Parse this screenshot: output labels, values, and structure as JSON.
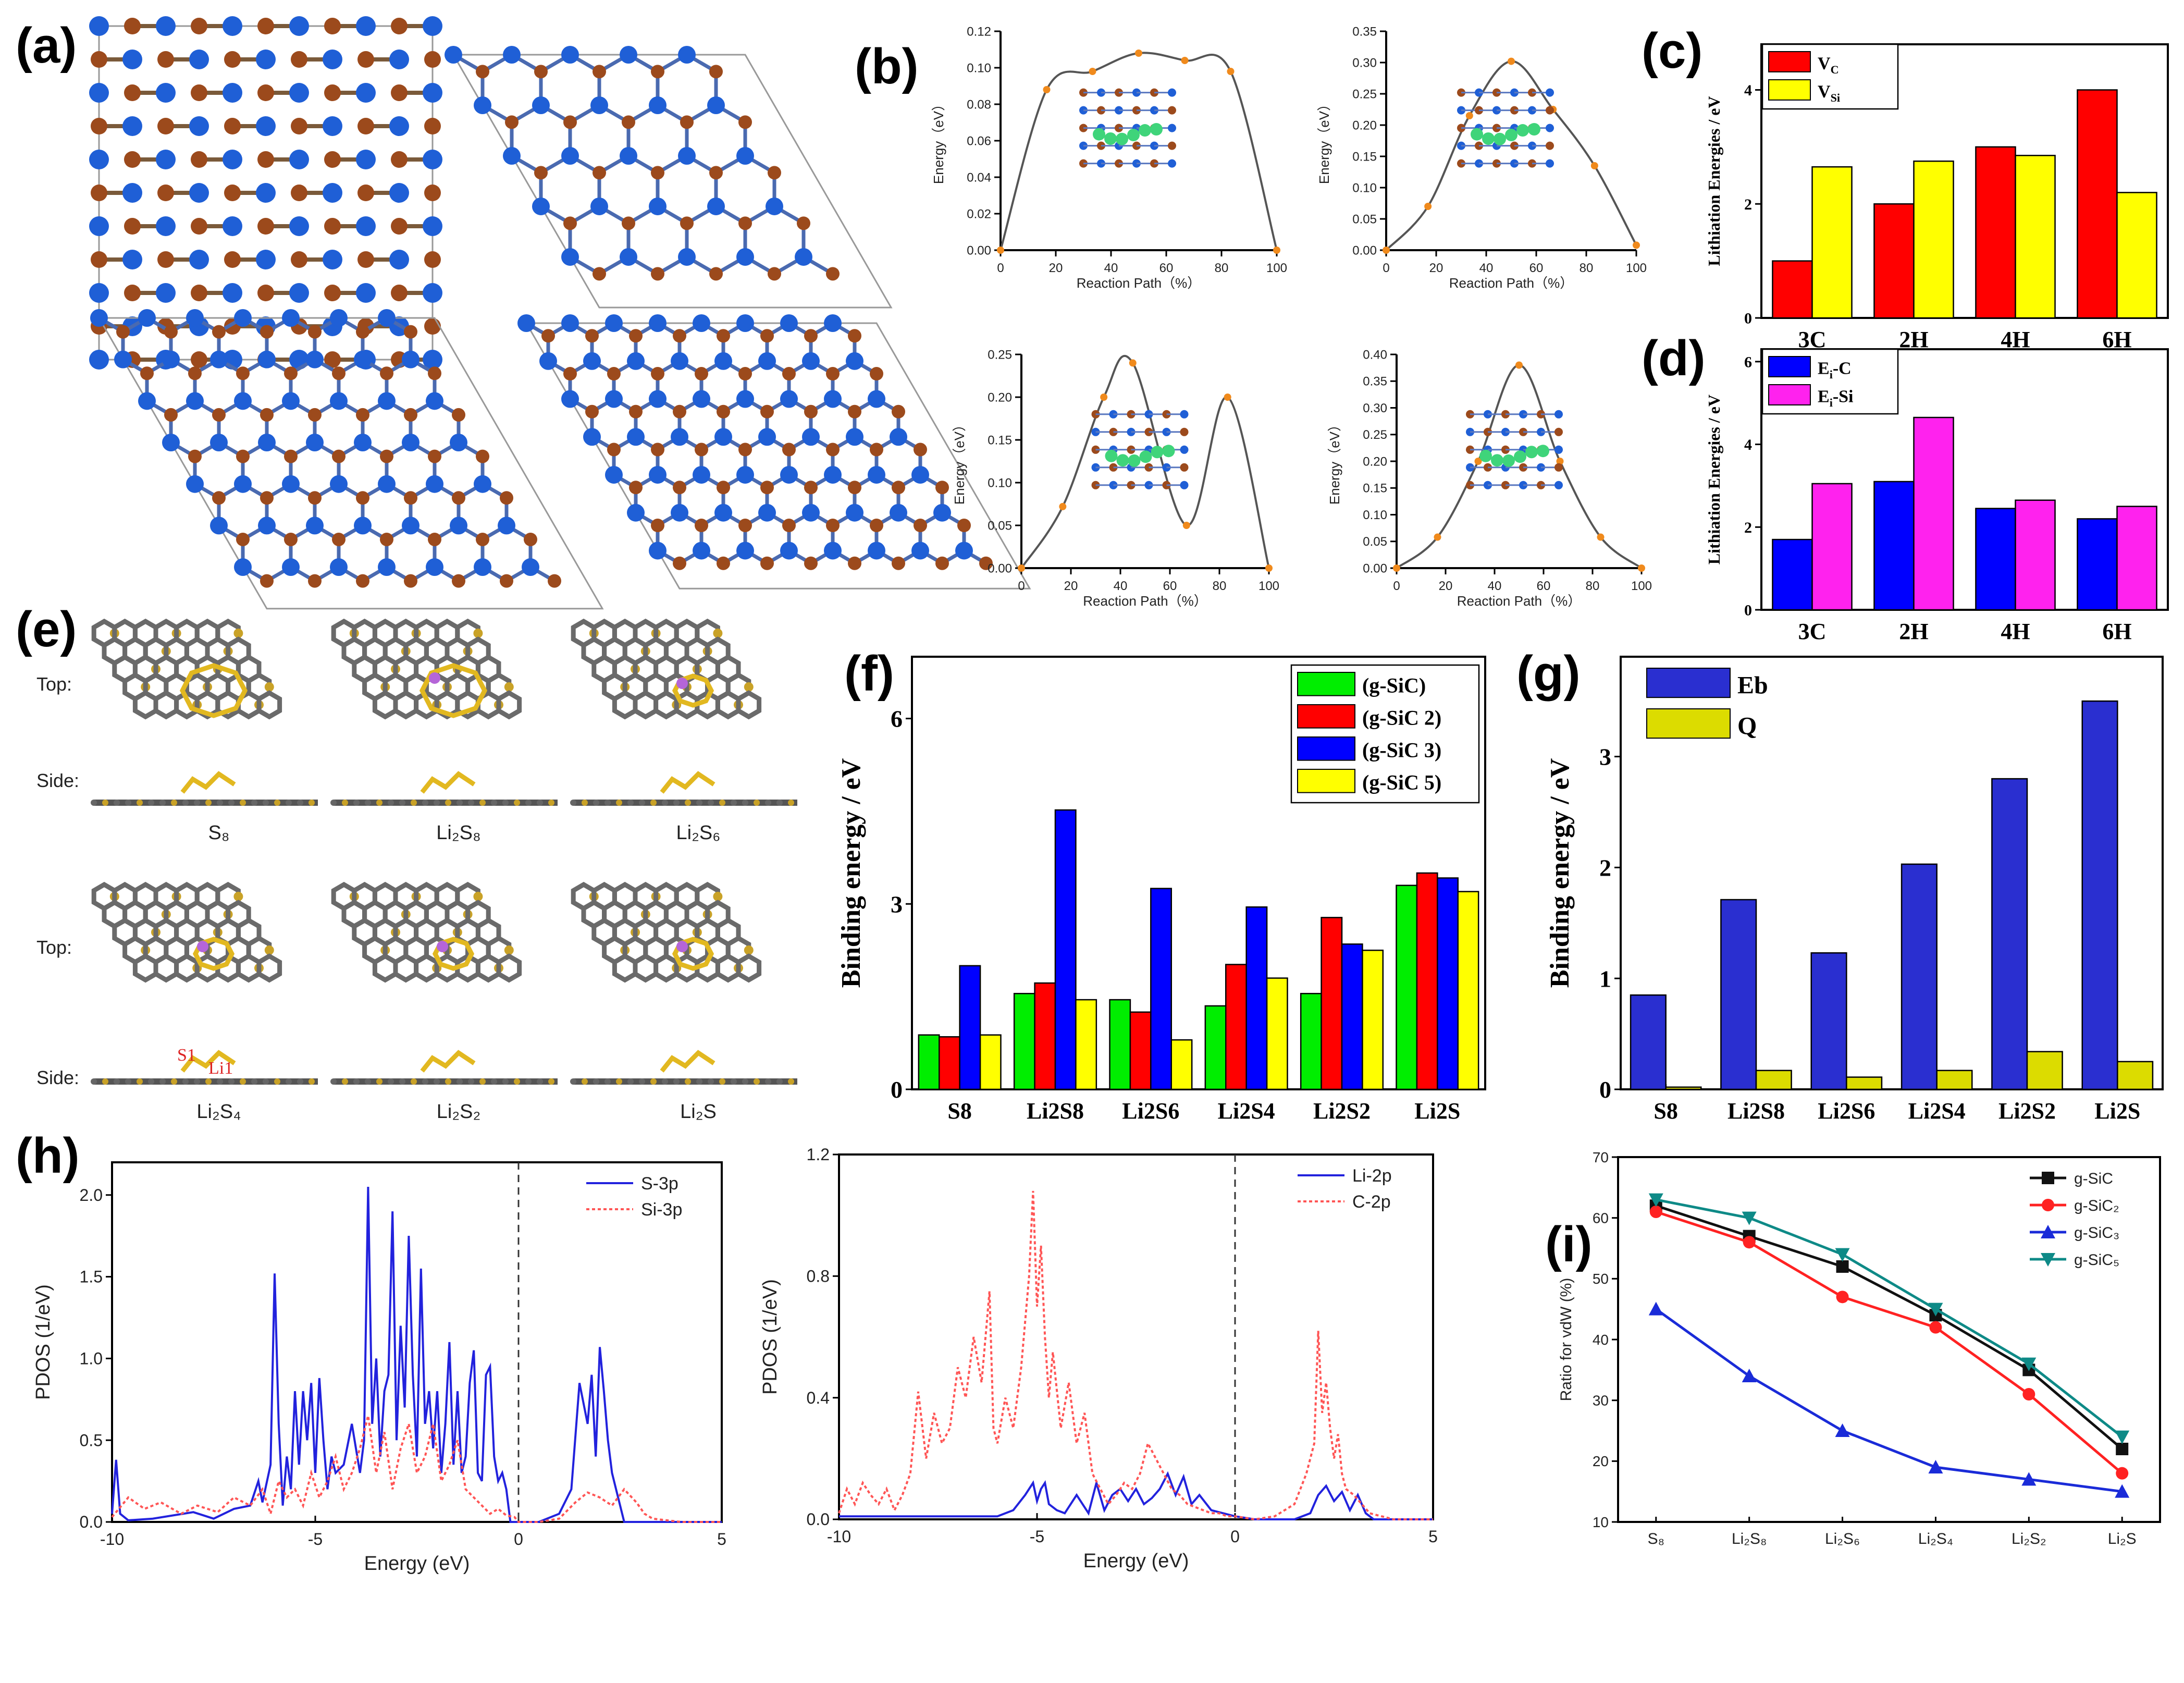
{
  "panel_labels": {
    "a": "(a)",
    "b": "(b)",
    "c": "(c)",
    "d": "(d)",
    "e": "(e)",
    "f": "(f)",
    "g": "(g)",
    "h": "(h)",
    "i": "(i)"
  },
  "colors": {
    "si": "#1f5fd6",
    "c": "#9c4a1c",
    "s": "#e2b820",
    "li": "#b565d8",
    "grey": "#6a6a6a",
    "green_path": "#3fd47a"
  },
  "structure_e": {
    "row_labels": {
      "top": "Top:",
      "side": "Side:"
    },
    "species": [
      "S8",
      "Li2S8",
      "Li2S6",
      "Li2S4",
      "Li2S2",
      "Li2S"
    ],
    "species_display": [
      "S₈",
      "Li₂S₈",
      "Li₂S₆",
      "Li₂S₄",
      "Li₂S₂",
      "Li₂S"
    ],
    "atom_labels": {
      "s1": "S1",
      "li1": "Li1"
    }
  },
  "chart_data": [
    {
      "id": "b1",
      "type": "line",
      "xlabel": "Reaction Path（%）",
      "ylabel": "Energy（eV）",
      "xlim": [
        0,
        100
      ],
      "ylim": [
        0,
        0.12
      ],
      "xticks": [
        "0",
        "20",
        "40",
        "60",
        "80",
        "100"
      ],
      "yticks": [
        "0.00",
        "0.02",
        "0.04",
        "0.06",
        "0.08",
        "0.10",
        "0.12"
      ],
      "x": [
        0,
        16.7,
        33.3,
        50,
        66.7,
        83.3,
        100
      ],
      "y": [
        0.0,
        0.088,
        0.098,
        0.108,
        0.104,
        0.098,
        0.0
      ]
    },
    {
      "id": "b2",
      "type": "line",
      "xlabel": "Reaction Path（%）",
      "ylabel": "Energy（eV）",
      "xlim": [
        0,
        100
      ],
      "ylim": [
        0,
        0.35
      ],
      "xticks": [
        "0",
        "20",
        "40",
        "60",
        "80",
        "100"
      ],
      "yticks": [
        "0.00",
        "0.05",
        "0.10",
        "0.15",
        "0.20",
        "0.25",
        "0.30",
        "0.35"
      ],
      "x": [
        0,
        16.7,
        33.3,
        50,
        66.7,
        83.3,
        100
      ],
      "y": [
        0.0,
        0.07,
        0.215,
        0.302,
        0.225,
        0.135,
        0.008
      ]
    },
    {
      "id": "b3",
      "type": "line",
      "xlabel": "Reaction Path（%）",
      "ylabel": "Energy（eV）",
      "xlim": [
        0,
        100
      ],
      "ylim": [
        0,
        0.25
      ],
      "xticks": [
        "0",
        "20",
        "40",
        "60",
        "80",
        "100"
      ],
      "yticks": [
        "0.00",
        "0.05",
        "0.10",
        "0.15",
        "0.20",
        "0.25"
      ],
      "x": [
        0,
        16.7,
        33.3,
        45,
        66.7,
        83.3,
        100
      ],
      "y": [
        0.0,
        0.072,
        0.2,
        0.24,
        0.05,
        0.2,
        0.0
      ]
    },
    {
      "id": "b4",
      "type": "line",
      "xlabel": "Reaction Path（%）",
      "ylabel": "Energy（eV）",
      "xlim": [
        0,
        100
      ],
      "ylim": [
        0,
        0.4
      ],
      "xticks": [
        "0",
        "20",
        "40",
        "60",
        "80",
        "100"
      ],
      "yticks": [
        "0.00",
        "0.05",
        "0.10",
        "0.15",
        "0.20",
        "0.25",
        "0.30",
        "0.35",
        "0.40"
      ],
      "x": [
        0,
        16.7,
        33.3,
        50,
        66.7,
        83.3,
        100
      ],
      "y": [
        0.0,
        0.058,
        0.2,
        0.38,
        0.2,
        0.058,
        0.0
      ]
    },
    {
      "id": "c",
      "type": "bar",
      "ylabel": "Lithiation Energies / eV",
      "categories": [
        "3C",
        "2H",
        "4H",
        "6H"
      ],
      "ylim": [
        0,
        4.8
      ],
      "yticks": [
        "0",
        "2",
        "4"
      ],
      "series": [
        {
          "name": "V",
          "sub": "C",
          "color": "#ff0000",
          "values": [
            1.0,
            2.0,
            3.0,
            4.0
          ]
        },
        {
          "name": "V",
          "sub": "Si",
          "color": "#ffff00",
          "values": [
            2.65,
            2.75,
            2.85,
            2.2
          ]
        }
      ]
    },
    {
      "id": "d",
      "type": "bar",
      "ylabel": "Lithiation Energies / eV",
      "categories": [
        "3C",
        "2H",
        "4H",
        "6H"
      ],
      "ylim": [
        0,
        6.3
      ],
      "yticks": [
        "0",
        "2",
        "4",
        "6"
      ],
      "series": [
        {
          "name": "E",
          "sub": "i",
          "suffix": "-C",
          "color": "#0000ff",
          "values": [
            1.7,
            3.1,
            2.45,
            2.2
          ]
        },
        {
          "name": "E",
          "sub": "i",
          "suffix": "-Si",
          "color": "#ff22ee",
          "values": [
            3.05,
            4.65,
            2.65,
            2.5
          ]
        }
      ]
    },
    {
      "id": "f",
      "type": "bar",
      "ylabel": "Binding energy / eV",
      "categories": [
        "S8",
        "Li2S8",
        "Li2S6",
        "Li2S4",
        "Li2S2",
        "Li2S"
      ],
      "ylim": [
        0,
        7
      ],
      "yticks": [
        "0",
        "3",
        "6"
      ],
      "series": [
        {
          "name": "(g-SiC)",
          "color": "#00ee00",
          "values": [
            0.88,
            1.55,
            1.45,
            1.35,
            1.55,
            3.3
          ]
        },
        {
          "name": "(g-SiC 2)",
          "color": "#ff0000",
          "values": [
            0.85,
            1.72,
            1.25,
            2.02,
            2.78,
            3.5
          ]
        },
        {
          "name": "(g-SiC 3)",
          "color": "#0000ff",
          "values": [
            2.0,
            4.52,
            3.25,
            2.95,
            2.35,
            3.42
          ]
        },
        {
          "name": "(g-SiC 5)",
          "color": "#ffff00",
          "values": [
            0.88,
            1.45,
            0.8,
            1.8,
            2.25,
            3.2
          ]
        }
      ]
    },
    {
      "id": "g",
      "type": "bar",
      "ylabel": "Binding energy / eV",
      "categories": [
        "S8",
        "Li2S8",
        "Li2S6",
        "Li2S4",
        "Li2S2",
        "Li2S"
      ],
      "ylim": [
        0,
        3.9
      ],
      "yticks": [
        "0",
        "1",
        "2",
        "3"
      ],
      "series": [
        {
          "name": "Eb",
          "color": "#2a2fd0",
          "values": [
            0.85,
            1.71,
            1.23,
            2.03,
            2.8,
            3.5
          ]
        },
        {
          "name": "Q",
          "color": "#dcdc00",
          "values": [
            0.02,
            0.17,
            0.11,
            0.17,
            0.34,
            0.25
          ]
        }
      ]
    },
    {
      "id": "h1",
      "type": "line",
      "xlabel": "Energy (eV)",
      "ylabel": "PDOS (1/eV)",
      "xlim": [
        -10,
        5
      ],
      "ylim": [
        0,
        2.2
      ],
      "xticks": [
        "-10",
        "-5",
        "0",
        "5"
      ],
      "yticks": [
        "0.0",
        "0.5",
        "1.0",
        "1.5",
        "2.0"
      ],
      "series": [
        {
          "name": "S-3p",
          "color": "#2222dd",
          "x": [
            -10,
            -9.9,
            -9.8,
            -9.6,
            -9,
            -8,
            -7.5,
            -7,
            -6.6,
            -6.4,
            -6.3,
            -6.1,
            -6.0,
            -5.9,
            -5.8,
            -5.7,
            -5.6,
            -5.5,
            -5.4,
            -5.3,
            -5.2,
            -5.1,
            -5.0,
            -4.9,
            -4.8,
            -4.7,
            -4.6,
            -4.5,
            -4.3,
            -4.1,
            -3.9,
            -3.8,
            -3.7,
            -3.6,
            -3.5,
            -3.4,
            -3.3,
            -3.2,
            -3.1,
            -3.0,
            -2.9,
            -2.8,
            -2.7,
            -2.6,
            -2.5,
            -2.4,
            -2.3,
            -2.2,
            -2.1,
            -2.0,
            -1.9,
            -1.8,
            -1.7,
            -1.6,
            -1.5,
            -1.4,
            -1.3,
            -1.2,
            -1.1,
            -1.0,
            -0.9,
            -0.8,
            -0.7,
            -0.6,
            -0.5,
            -0.4,
            -0.3,
            -0.2,
            -0.1,
            0,
            0.5,
            1.0,
            1.3,
            1.5,
            1.7,
            1.8,
            1.9,
            2.0,
            2.1,
            2.2,
            2.3,
            2.4,
            2.5,
            2.6,
            2.7,
            2.8,
            2.9,
            3.0,
            3.1,
            3.3,
            4,
            5
          ],
          "y": [
            0.05,
            0.38,
            0.05,
            0.01,
            0.02,
            0.06,
            0.02,
            0.08,
            0.1,
            0.25,
            0.12,
            0.35,
            1.52,
            0.6,
            0.1,
            0.4,
            0.2,
            0.8,
            0.35,
            0.8,
            0.5,
            0.85,
            0.3,
            0.88,
            0.5,
            0.2,
            0.4,
            0.3,
            0.35,
            0.6,
            0.3,
            0.5,
            2.05,
            0.6,
            1.0,
            0.4,
            0.8,
            0.9,
            1.9,
            0.5,
            1.2,
            0.7,
            1.75,
            0.9,
            0.4,
            1.55,
            0.6,
            0.8,
            0.45,
            0.8,
            0.3,
            0.6,
            1.1,
            0.35,
            0.8,
            0.3,
            0.4,
            0.85,
            1.05,
            0.3,
            0.25,
            0.9,
            0.95,
            0.4,
            0.25,
            0.3,
            0.2,
            0.0,
            0.0,
            0.0,
            0.0,
            0.05,
            0.2,
            0.85,
            0.6,
            0.9,
            0.4,
            1.07,
            0.8,
            0.5,
            0.3,
            0.2,
            0.1,
            0.0,
            0.0,
            0.0,
            0.0,
            0.0,
            0.0,
            0.0,
            0.0,
            0.0
          ]
        },
        {
          "name": "Si-3p",
          "color": "#ff5555",
          "dashed": true,
          "x": [
            -10,
            -9.6,
            -9.2,
            -8.8,
            -8.3,
            -7.9,
            -7.4,
            -7.0,
            -6.6,
            -6.3,
            -6.1,
            -5.9,
            -5.7,
            -5.5,
            -5.3,
            -5.1,
            -4.9,
            -4.7,
            -4.5,
            -4.3,
            -4.1,
            -3.9,
            -3.7,
            -3.5,
            -3.3,
            -3.1,
            -2.9,
            -2.7,
            -2.5,
            -2.3,
            -2.1,
            -1.9,
            -1.7,
            -1.5,
            -1.3,
            -1.1,
            -0.9,
            -0.7,
            -0.5,
            -0.3,
            -0.1,
            0,
            0.5,
            1.0,
            1.4,
            1.7,
            2.0,
            2.3,
            2.6,
            2.9,
            3.1,
            3.3,
            4,
            5
          ],
          "y": [
            0.03,
            0.15,
            0.08,
            0.12,
            0.05,
            0.1,
            0.06,
            0.15,
            0.1,
            0.2,
            0.05,
            0.25,
            0.15,
            0.2,
            0.1,
            0.3,
            0.15,
            0.25,
            0.4,
            0.2,
            0.3,
            0.45,
            0.65,
            0.3,
            0.55,
            0.2,
            0.45,
            0.6,
            0.3,
            0.4,
            0.6,
            0.25,
            0.35,
            0.5,
            0.2,
            0.15,
            0.1,
            0.05,
            0.08,
            0.04,
            0.03,
            0.0,
            0.0,
            0.02,
            0.12,
            0.18,
            0.15,
            0.1,
            0.2,
            0.12,
            0.05,
            0.02,
            0.0,
            0.0
          ]
        }
      ]
    },
    {
      "id": "h2",
      "type": "line",
      "xlabel": "Energy (eV)",
      "ylabel": "PDOS (1/eV)",
      "xlim": [
        -10,
        5
      ],
      "ylim": [
        0,
        1.2
      ],
      "xticks": [
        "-10",
        "-5",
        "0",
        "5"
      ],
      "yticks": [
        "0.0",
        "0.4",
        "0.8",
        "1.2"
      ],
      "series": [
        {
          "name": "Li-2p",
          "color": "#2222dd",
          "x": [
            -10,
            -9,
            -8,
            -7,
            -6,
            -5.6,
            -5.3,
            -5.1,
            -5.0,
            -4.9,
            -4.8,
            -4.7,
            -4.5,
            -4.3,
            -4.0,
            -3.7,
            -3.5,
            -3.3,
            -3.1,
            -2.9,
            -2.7,
            -2.5,
            -2.3,
            -2.1,
            -1.9,
            -1.7,
            -1.5,
            -1.3,
            -1.1,
            -0.9,
            -0.6,
            -0.3,
            0,
            0.5,
            1.0,
            1.5,
            1.9,
            2.1,
            2.3,
            2.5,
            2.7,
            2.9,
            3.1,
            3.3,
            3.5,
            4,
            5
          ],
          "y": [
            0.01,
            0.01,
            0.01,
            0.01,
            0.01,
            0.03,
            0.08,
            0.12,
            0.06,
            0.1,
            0.12,
            0.05,
            0.03,
            0.02,
            0.08,
            0.02,
            0.12,
            0.03,
            0.08,
            0.1,
            0.06,
            0.1,
            0.05,
            0.07,
            0.1,
            0.15,
            0.08,
            0.14,
            0.05,
            0.08,
            0.03,
            0.02,
            0.01,
            0.0,
            0.0,
            0.0,
            0.02,
            0.08,
            0.11,
            0.06,
            0.09,
            0.03,
            0.08,
            0.02,
            0.0,
            0.0,
            0.0
          ]
        },
        {
          "name": "C-2p",
          "color": "#ff5555",
          "dashed": true,
          "x": [
            -10,
            -9.8,
            -9.6,
            -9.4,
            -9.2,
            -9.0,
            -8.8,
            -8.6,
            -8.4,
            -8.2,
            -8.0,
            -7.8,
            -7.6,
            -7.4,
            -7.2,
            -7.0,
            -6.8,
            -6.6,
            -6.4,
            -6.2,
            -6.1,
            -6.0,
            -5.8,
            -5.6,
            -5.4,
            -5.2,
            -5.1,
            -5.0,
            -4.9,
            -4.8,
            -4.7,
            -4.6,
            -4.4,
            -4.2,
            -4.0,
            -3.8,
            -3.6,
            -3.4,
            -3.2,
            -3.0,
            -2.8,
            -2.6,
            -2.4,
            -2.2,
            -2.0,
            -1.8,
            -1.6,
            -1.4,
            -1.2,
            -1.0,
            -0.8,
            -0.6,
            -0.4,
            -0.2,
            0,
            0.5,
            1.0,
            1.5,
            1.8,
            2.0,
            2.1,
            2.2,
            2.3,
            2.4,
            2.5,
            2.6,
            2.7,
            2.8,
            3.0,
            3.2,
            3.4,
            4,
            5
          ],
          "y": [
            0.02,
            0.1,
            0.05,
            0.12,
            0.08,
            0.05,
            0.1,
            0.03,
            0.08,
            0.15,
            0.42,
            0.2,
            0.35,
            0.25,
            0.3,
            0.5,
            0.4,
            0.6,
            0.45,
            0.75,
            0.3,
            0.25,
            0.4,
            0.3,
            0.5,
            0.8,
            1.08,
            0.7,
            0.9,
            0.6,
            0.4,
            0.55,
            0.3,
            0.45,
            0.25,
            0.35,
            0.15,
            0.1,
            0.05,
            0.08,
            0.12,
            0.1,
            0.15,
            0.25,
            0.2,
            0.15,
            0.1,
            0.08,
            0.05,
            0.04,
            0.03,
            0.02,
            0.02,
            0.01,
            0.01,
            0.0,
            0.01,
            0.05,
            0.15,
            0.25,
            0.62,
            0.35,
            0.45,
            0.3,
            0.2,
            0.28,
            0.15,
            0.1,
            0.08,
            0.05,
            0.02,
            0.0,
            0.0
          ]
        }
      ]
    },
    {
      "id": "i",
      "type": "line",
      "xlabel": "",
      "ylabel": "Ratio for vdW (%)",
      "ylim": [
        10,
        70
      ],
      "yticks": [
        "10",
        "20",
        "30",
        "40",
        "50",
        "60",
        "70"
      ],
      "categories": [
        "S8",
        "Li2S8",
        "Li2S6",
        "Li2S4",
        "Li2S2",
        "Li2S"
      ],
      "category_display": [
        "S₈",
        "Li₂S₈",
        "Li₂S₆",
        "Li₂S₄",
        "Li₂S₂",
        "Li₂S"
      ],
      "series": [
        {
          "name": "g-SiC",
          "display": "g-SiC",
          "color": "#111111",
          "marker": "square",
          "values": [
            62,
            57,
            52,
            44,
            35,
            22
          ]
        },
        {
          "name": "g-SiC2",
          "display": "g-SiC₂",
          "color": "#ff2222",
          "marker": "circle",
          "values": [
            61,
            56,
            47,
            42,
            31,
            18
          ]
        },
        {
          "name": "g-SiC3",
          "display": "g-SiC₃",
          "color": "#1a2bd8",
          "marker": "triangle",
          "values": [
            45,
            34,
            25,
            19,
            17,
            15
          ]
        },
        {
          "name": "g-SiC5",
          "display": "g-SiC₅",
          "color": "#0e8a87",
          "marker": "invtriangle",
          "values": [
            63,
            60,
            54,
            45,
            36,
            24
          ]
        }
      ]
    }
  ]
}
